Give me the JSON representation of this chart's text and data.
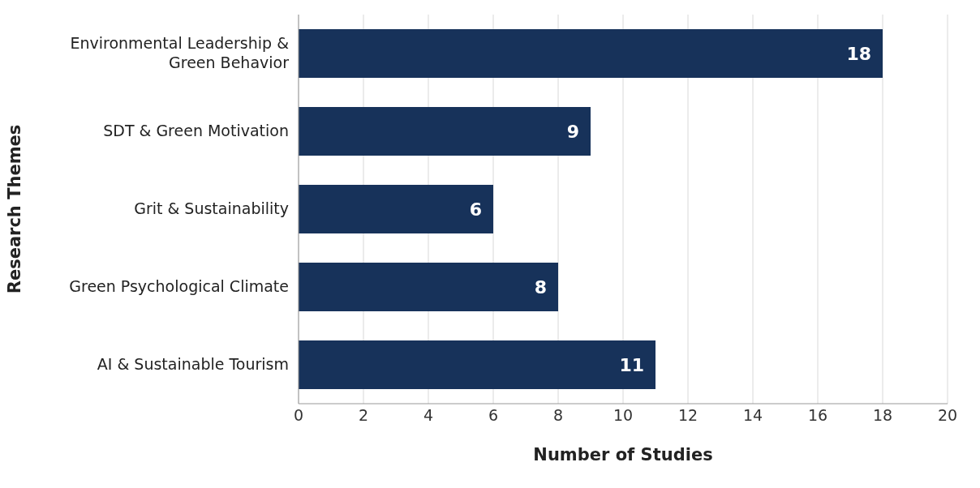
{
  "chart_data": {
    "type": "bar",
    "orientation": "horizontal",
    "xlabel": "Number of Studies",
    "ylabel": "Research Themes",
    "categories": [
      "Environmental Leadership & Green Behavior",
      "SDT & Green Motivation",
      "Grit & Sustainability",
      "Green Psychological Climate",
      "AI & Sustainable Tourism"
    ],
    "values": [
      18,
      9,
      6,
      8,
      11
    ],
    "color": "#17325a",
    "data_labels": true,
    "xlim": [
      0,
      20
    ],
    "xticks": [
      0,
      2,
      4,
      6,
      8,
      10,
      12,
      14,
      16,
      18,
      20
    ],
    "grid": "x"
  }
}
